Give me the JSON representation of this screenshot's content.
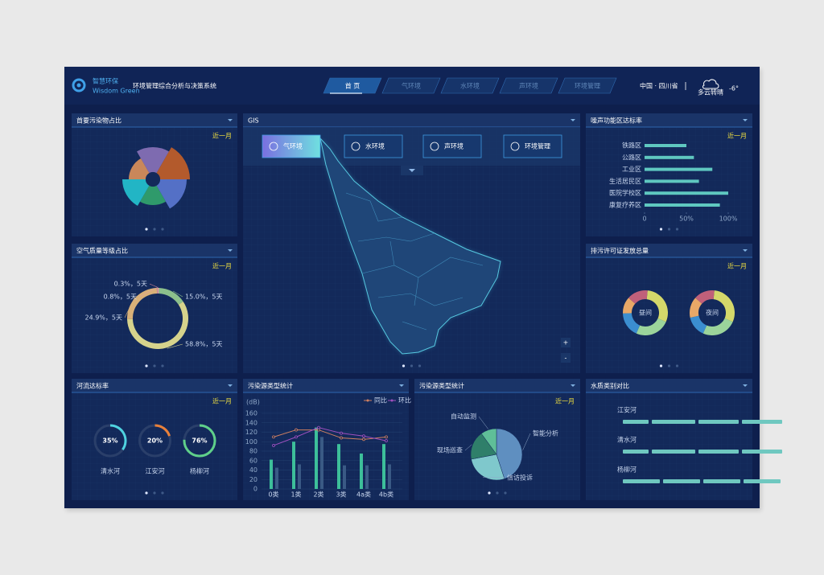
{
  "header": {
    "logo": "智慧环保",
    "logo_sub": "Wisdom Green",
    "title": "环境管理综合分析与决策系统",
    "nav": [
      "首 页",
      "气环境",
      "水环境",
      "声环境",
      "环境管理"
    ],
    "location": "中国 · 四川省",
    "weather": "多云转晴",
    "temperature": "-6°"
  },
  "panels": {
    "pollutant": {
      "title": "首要污染物占比",
      "filter": "近一月",
      "chart_data": {
        "type": "rose",
        "values": [
          40,
          46,
          42,
          32,
          38,
          30
        ],
        "colors": [
          "#7e6bb0",
          "#b35a2c",
          "#5470c6",
          "#2f9a6b",
          "#22b5c5",
          "#c9875a"
        ]
      }
    },
    "air": {
      "title": "空气质量等级占比",
      "filter": "近一月",
      "chart_data": {
        "type": "donut",
        "values": [
          15.0,
          58.8,
          24.9,
          0.3,
          0.8
        ],
        "value_labels": [
          "15.0%，5天",
          "58.8%，5天",
          "24.9%，5天",
          "0.3%，5天",
          "0.8%，5天"
        ],
        "colors": [
          "#8cc08c",
          "#d6d38c",
          "#d8b078",
          "#d4879a",
          "#e0a0a0"
        ]
      }
    },
    "river": {
      "title": "河流达标率",
      "filter": "近一月",
      "chart_data": {
        "type": "gauge",
        "categories": [
          "清水河",
          "江安河",
          "杨柳河"
        ],
        "values": [
          35,
          20,
          76
        ],
        "value_labels": [
          "35%",
          "20%",
          "76%"
        ],
        "range": [
          0,
          100
        ],
        "colors": [
          "#4fd3e0",
          "#e8803a",
          "#5fd08a"
        ]
      }
    },
    "gis": {
      "title": "GIS",
      "buttons": [
        "气环境",
        "水环境",
        "声环境",
        "环境管理"
      ],
      "zoom": [
        "+",
        "-"
      ]
    },
    "noise": {
      "title": "噪声功能区达标率",
      "filter": "近一月",
      "chart_data": {
        "type": "hbar",
        "categories": [
          "铁路区",
          "公路区",
          "工业区",
          "生活居民区",
          "医院学校区",
          "康复疗养区"
        ],
        "values": [
          50,
          59,
          81,
          65,
          100,
          90
        ],
        "color": "#5fc8c0",
        "xlim": [
          0,
          100
        ],
        "xticks": [
          0,
          {
            "value": 50,
            "label": "50%"
          },
          {
            "value": 100,
            "label": "100%"
          }
        ]
      }
    },
    "permit": {
      "title": "排污许可证发放总量",
      "filter": "近一月",
      "chart_data": {
        "type": "multi-donut",
        "colors": [
          "#d4d86a",
          "#9bd49b",
          "#3b8ed0",
          "#e8a867",
          "#c0607a"
        ],
        "series": [
          {
            "name": "昼间",
            "values": [
              30,
              25,
              18,
              12,
              15
            ]
          },
          {
            "name": "夜间",
            "values": [
              30,
              25,
              15,
              15,
              15
            ]
          }
        ]
      }
    },
    "source_bar": {
      "title": "污染源类型统计",
      "chart_data": {
        "type": "bar-line",
        "y_label": "(dB)",
        "categories": [
          "0类",
          "1类",
          "2类",
          "3类",
          "4a类",
          "4b类"
        ],
        "ylim": [
          0,
          160
        ],
        "yticks": [
          0,
          20,
          40,
          60,
          80,
          100,
          120,
          140,
          160
        ],
        "series": [
          {
            "type": "bar",
            "color": "#3dbf9a",
            "values": [
              62,
              100,
              130,
              95,
              75,
              95
            ]
          },
          {
            "type": "bar",
            "color": "#3a5a85",
            "values": [
              45,
              52,
              110,
              50,
              50,
              52
            ]
          },
          {
            "name": "同比",
            "type": "line",
            "color": "#d08060",
            "values": [
              110,
              125,
              125,
              108,
              105,
              110
            ]
          },
          {
            "name": "环比",
            "type": "line",
            "color": "#a050c0",
            "values": [
              92,
              110,
              130,
              118,
              112,
              102
            ]
          }
        ]
      }
    },
    "source_pie": {
      "title": "污染源类型统计",
      "filter": "近一月",
      "chart_data": {
        "type": "pie",
        "categories": [
          "智能分析",
          "信访投诉",
          "现场巡查",
          "自动监测"
        ],
        "values": [
          45,
          27,
          18,
          10
        ],
        "colors": [
          "#5f8fc0",
          "#7fc8cc",
          "#2f7f6a",
          "#5fbf98"
        ]
      }
    },
    "water": {
      "title": "水质类别对比",
      "chart_data": {
        "type": "segmented-bar",
        "categories": [
          "江安河",
          "清水河",
          "杨柳河"
        ],
        "color": "#6fc8c0",
        "values": [
          [
            32,
            54,
            50,
            50
          ],
          [
            32,
            54,
            50,
            50
          ],
          [
            46,
            46,
            46,
            46
          ]
        ]
      }
    }
  }
}
